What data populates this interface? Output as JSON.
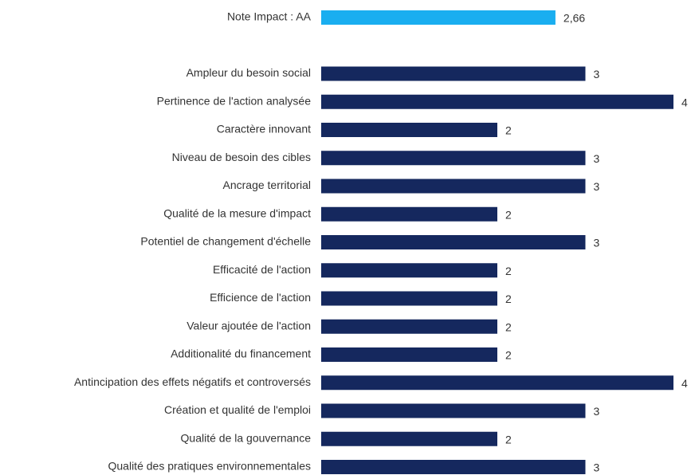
{
  "chart_data": {
    "type": "hbar",
    "categories": [
      "Note Impact : AA",
      null,
      "Ampleur du besoin social",
      "Pertinence de l'action analysée",
      "Caractère innovant",
      "Niveau de besoin des cibles",
      "Ancrage territorial",
      "Qualité de la mesure d'impact",
      "Potentiel de changement d'échelle",
      "Efficacité de l'action",
      "Efficience de l'action",
      "Valeur ajoutée de l'action",
      "Additionalité du financement",
      "Antincipation des effets négatifs et controversés",
      "Création et qualité de l'emploi",
      "Qualité de la gouvernance",
      "Qualité des pratiques environnementales"
    ],
    "values": [
      2.66,
      null,
      3,
      4,
      2,
      3,
      3,
      2,
      3,
      2,
      2,
      2,
      2,
      4,
      3,
      2,
      3
    ],
    "value_labels": [
      "2,66",
      null,
      "3",
      "4",
      "2",
      "3",
      "3",
      "2",
      "3",
      "2",
      "2",
      "2",
      "2",
      "4",
      "3",
      "2",
      "3"
    ],
    "colors": [
      "#1aaef0",
      null,
      "#15285e",
      "#15285e",
      "#15285e",
      "#15285e",
      "#15285e",
      "#15285e",
      "#15285e",
      "#15285e",
      "#15285e",
      "#15285e",
      "#15285e",
      "#15285e",
      "#15285e",
      "#15285e",
      "#15285e"
    ],
    "xlim": [
      0,
      4
    ]
  }
}
